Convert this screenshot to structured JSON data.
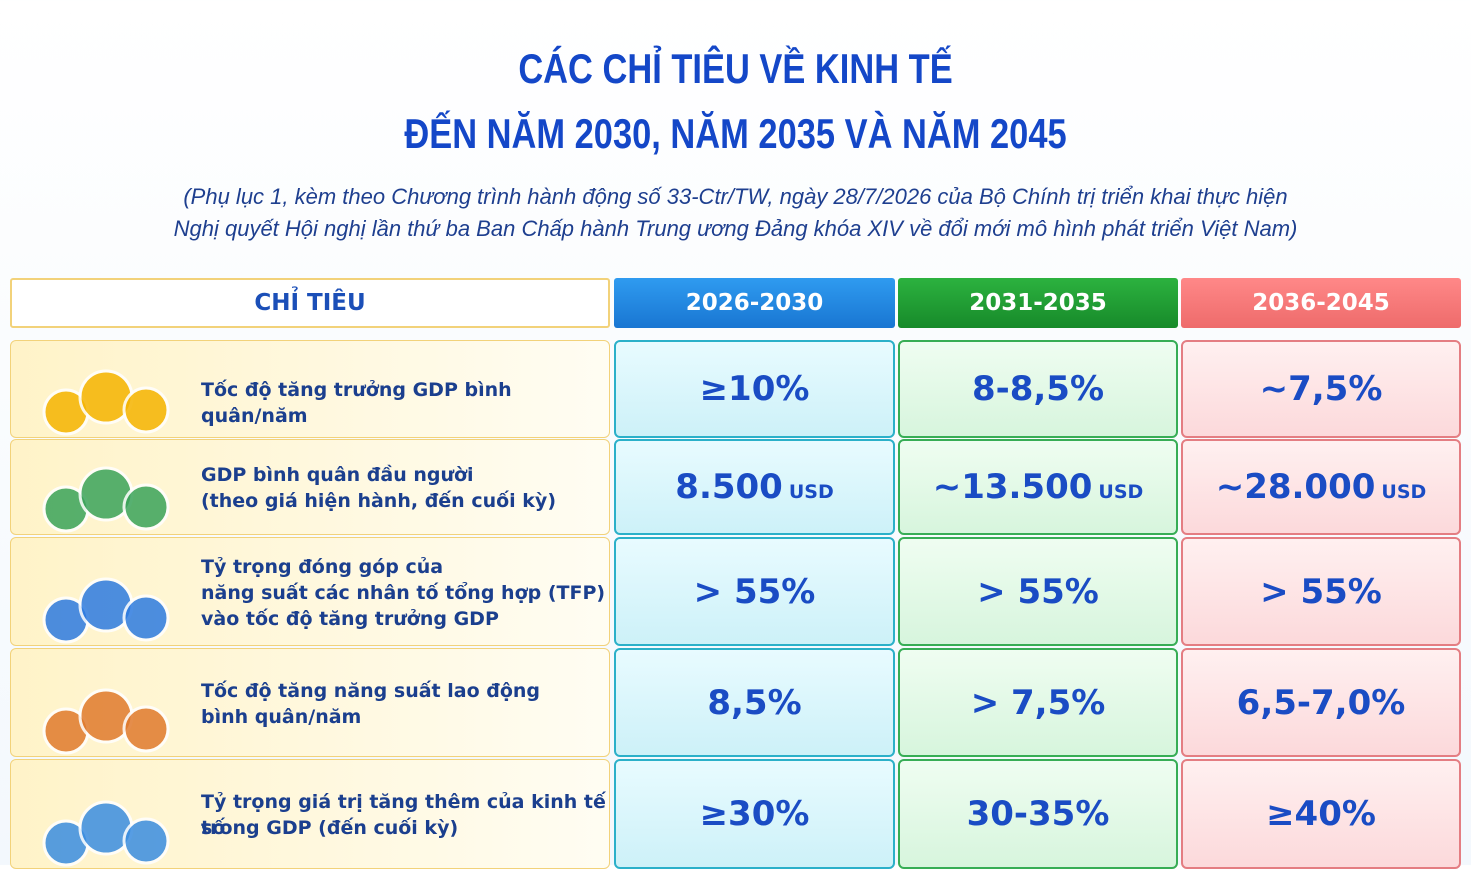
{
  "header": {
    "title": [
      "CÁC CHỈ TIÊU VỀ KINH TẾ",
      "ĐẾN NĂM 2030, NĂM 2035 VÀ NĂM 2045"
    ],
    "subtitle": [
      "(Phụ lục 1, kèm theo Chương trình hành động số 33-Ctr/TW, ngày 28/7/2026 của Bộ Chính trị triển khai thực hiện",
      "Nghị quyết Hội nghị lần thứ ba Ban Chấp hành Trung ương Đảng khóa XIV về đổi mới mô hình phát triển Việt Nam)"
    ]
  },
  "table": {
    "columns": [
      "CHỈ TIÊU",
      "2026-2030",
      "2031-2035",
      "2036-2045"
    ],
    "rows": [
      {
        "label": [
          "Tốc độ tăng trưởng GDP bình quân/năm"
        ],
        "values": [
          {
            "text": "≥10%"
          },
          {
            "text": "8-8,5%"
          },
          {
            "text": "~7,5%"
          }
        ]
      },
      {
        "label": [
          "GDP bình quân đầu người",
          "(theo giá hiện hành, đến cuối kỳ)"
        ],
        "values": [
          {
            "text": "8.500",
            "unit": "USD"
          },
          {
            "text": "~13.500",
            "unit": "USD"
          },
          {
            "text": "~28.000",
            "unit": "USD"
          }
        ]
      },
      {
        "label": [
          "Tỷ trọng đóng góp của",
          "năng suất các nhân tố tổng hợp (TFP)",
          "vào tốc độ tăng trưởng GDP"
        ],
        "values": [
          {
            "text": "> 55%"
          },
          {
            "text": "> 55%"
          },
          {
            "text": "> 55%"
          }
        ]
      },
      {
        "label": [
          "Tốc độ tăng năng suất lao động",
          "bình quân/năm"
        ],
        "values": [
          {
            "text": "8,5%"
          },
          {
            "text": "> 7,5%"
          },
          {
            "text": "6,5-7,0%"
          }
        ]
      },
      {
        "label": [
          "Tỷ trọng giá trị tăng thêm của kinh tế số",
          "trong GDP (đến cuối kỳ)"
        ],
        "values": [
          {
            "text": "≥30%"
          },
          {
            "text": "30-35%"
          },
          {
            "text": "≥40%"
          }
        ]
      }
    ]
  }
}
